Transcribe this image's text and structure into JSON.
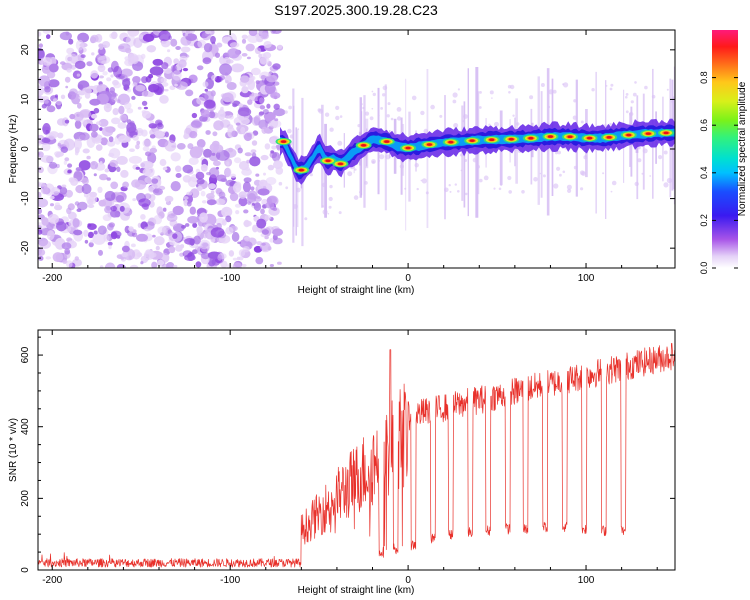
{
  "title": "S197.2025.300.19.28.C23",
  "colors": {
    "snr_line": "#e8302a",
    "axis": "#000000"
  },
  "chart_data": [
    {
      "type": "heatmap",
      "name": "spectrogram",
      "xlabel": "Height of straight line (km)",
      "ylabel": "Frequency (Hz)",
      "xlim": [
        -208,
        150
      ],
      "ylim": [
        -24,
        24
      ],
      "xticks": [
        -200,
        -100,
        0,
        100
      ],
      "yticks": [
        -20,
        -10,
        0,
        10,
        20
      ],
      "noise_region_x": [
        -208,
        -72
      ],
      "signal_start_x": -72,
      "ridge": [
        {
          "x": -70,
          "f": 1.5
        },
        {
          "x": -66,
          "f": -1.5
        },
        {
          "x": -62,
          "f": -4.5
        },
        {
          "x": -58,
          "f": -4
        },
        {
          "x": -54,
          "f": -2
        },
        {
          "x": -50,
          "f": 0.5
        },
        {
          "x": -46,
          "f": -2.5
        },
        {
          "x": -42,
          "f": -2
        },
        {
          "x": -38,
          "f": -3
        },
        {
          "x": -32,
          "f": -1
        },
        {
          "x": -26,
          "f": 0.5
        },
        {
          "x": -20,
          "f": 2
        },
        {
          "x": -12,
          "f": 1.5
        },
        {
          "x": -6,
          "f": 0.5
        },
        {
          "x": 0,
          "f": 0.2
        },
        {
          "x": 10,
          "f": 0.8
        },
        {
          "x": 20,
          "f": 1.3
        },
        {
          "x": 30,
          "f": 1.5
        },
        {
          "x": 40,
          "f": 1.8
        },
        {
          "x": 50,
          "f": 1.9
        },
        {
          "x": 60,
          "f": 2
        },
        {
          "x": 70,
          "f": 2.2
        },
        {
          "x": 80,
          "f": 2.5
        },
        {
          "x": 90,
          "f": 2.5
        },
        {
          "x": 100,
          "f": 2.2
        },
        {
          "x": 110,
          "f": 2.2
        },
        {
          "x": 120,
          "f": 2.7
        },
        {
          "x": 130,
          "f": 3
        },
        {
          "x": 140,
          "f": 3.2
        },
        {
          "x": 150,
          "f": 3.3
        }
      ],
      "hotspots": [
        -70,
        -60,
        -45,
        -38,
        -25,
        -12,
        0,
        12,
        24,
        36,
        47,
        58,
        69,
        80,
        91,
        102,
        113,
        124,
        135,
        145
      ],
      "colorbar": {
        "label": "Normalized spectral amplitude",
        "min": 0,
        "max": 1,
        "ticks": [
          "0.0",
          "0.2",
          "0.4",
          "0.6",
          "0.8"
        ],
        "tick_values": [
          0,
          0.2,
          0.4,
          0.6,
          0.8
        ]
      }
    },
    {
      "type": "line",
      "name": "snr",
      "xlabel": "Height of straight line (km)",
      "ylabel": "SNR (10 * v/v)",
      "xlim": [
        -208,
        150
      ],
      "ylim": [
        0,
        670
      ],
      "xticks": [
        -200,
        -100,
        0,
        100
      ],
      "yticks": [
        0,
        200,
        400,
        600
      ],
      "segments": {
        "noise_floor": {
          "x": [
            -208,
            -60
          ],
          "level": 20,
          "spread": 12
        },
        "rise": {
          "x": [
            -60,
            0
          ],
          "start_level": 120,
          "end_level": 420
        },
        "plateau": {
          "x": [
            0,
            150
          ],
          "start_level": 430,
          "end_level": 600
        }
      },
      "peak": {
        "x": -10,
        "y": 615
      },
      "dropouts": [
        {
          "x": -15,
          "y": 50
        },
        {
          "x": -7,
          "y": 60
        },
        {
          "x": 3,
          "y": 70
        },
        {
          "x": 14,
          "y": 90
        },
        {
          "x": 24,
          "y": 100
        },
        {
          "x": 35,
          "y": 105
        },
        {
          "x": 45,
          "y": 110
        },
        {
          "x": 56,
          "y": 115
        },
        {
          "x": 66,
          "y": 115
        },
        {
          "x": 77,
          "y": 120
        },
        {
          "x": 88,
          "y": 120
        },
        {
          "x": 99,
          "y": 115
        },
        {
          "x": 110,
          "y": 110
        },
        {
          "x": 121,
          "y": 110
        }
      ]
    }
  ]
}
